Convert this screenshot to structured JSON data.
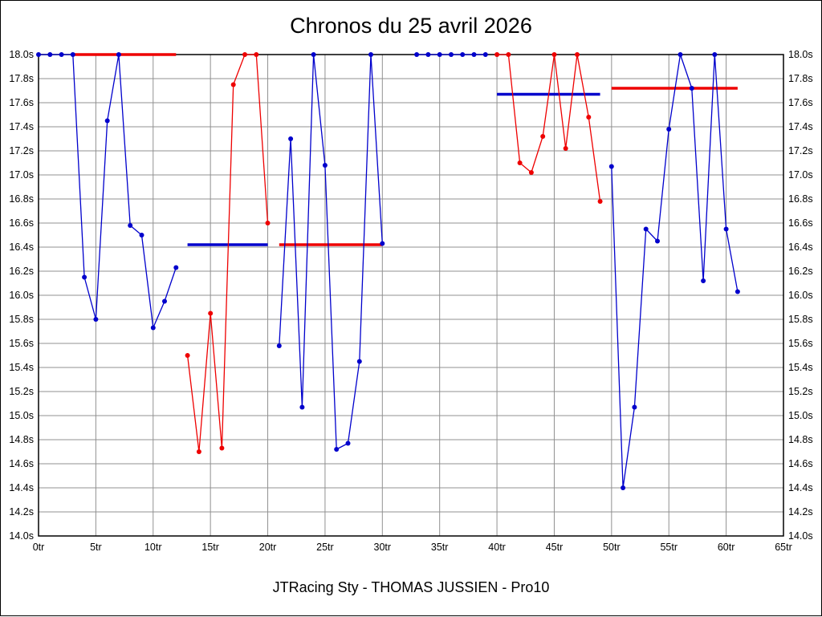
{
  "chart_data": {
    "type": "line",
    "title": "Chronos du 25 avril 2026",
    "footer_label": "JTRacing Sty - THOMAS JUSSIEN - Pro10",
    "x_unit": "tr",
    "y_unit": "s",
    "xlim": [
      0,
      65
    ],
    "ylim": [
      14.0,
      18.0
    ],
    "grid": true,
    "legend": "none",
    "colors": {
      "grid": "#909090",
      "frame": "#000000",
      "blue_series": "#0000cc",
      "red_series": "#ee0000"
    },
    "x_ticks": [
      "0tr",
      "5tr",
      "10tr",
      "15tr",
      "20tr",
      "25tr",
      "30tr",
      "35tr",
      "40tr",
      "45tr",
      "50tr",
      "55tr",
      "60tr",
      "65tr"
    ],
    "x_tick_values": [
      0,
      5,
      10,
      15,
      20,
      25,
      30,
      35,
      40,
      45,
      50,
      55,
      60,
      65
    ],
    "y_ticks": [
      "18.0s",
      "17.8s",
      "17.6s",
      "17.4s",
      "17.2s",
      "17.0s",
      "16.8s",
      "16.6s",
      "16.4s",
      "16.2s",
      "16.0s",
      "15.8s",
      "15.6s",
      "15.4s",
      "15.2s",
      "15.0s",
      "14.8s",
      "14.6s",
      "14.4s",
      "14.2s",
      "14.0s"
    ],
    "y_tick_values": [
      18.0,
      17.8,
      17.6,
      17.4,
      17.2,
      17.0,
      16.8,
      16.6,
      16.4,
      16.2,
      16.0,
      15.8,
      15.6,
      15.4,
      15.2,
      15.0,
      14.8,
      14.6,
      14.4,
      14.2,
      14.0
    ],
    "series": [
      {
        "name": "blue-lap-times-run-1",
        "color_key": "blue_series",
        "points": [
          [
            0,
            18.0
          ],
          [
            1,
            18.0
          ],
          [
            2,
            18.0
          ],
          [
            3,
            18.0
          ],
          [
            4,
            16.15
          ],
          [
            5,
            15.8
          ],
          [
            6,
            17.45
          ],
          [
            7,
            18.0
          ],
          [
            8,
            16.58
          ],
          [
            9,
            16.5
          ],
          [
            10,
            15.73
          ],
          [
            11,
            15.95
          ],
          [
            12,
            16.23
          ]
        ]
      },
      {
        "name": "blue-lap-times-run-2",
        "color_key": "blue_series",
        "points": [
          [
            21,
            15.58
          ],
          [
            22,
            17.3
          ],
          [
            23,
            15.07
          ],
          [
            24,
            18.0
          ],
          [
            25,
            17.08
          ],
          [
            26,
            14.72
          ],
          [
            27,
            14.77
          ],
          [
            28,
            15.45
          ],
          [
            29,
            18.0
          ],
          [
            30,
            16.43
          ]
        ]
      },
      {
        "name": "blue-lap-times-run-3",
        "color_key": "blue_series",
        "points": [
          [
            33,
            18.0
          ],
          [
            34,
            18.0
          ],
          [
            35,
            18.0
          ],
          [
            36,
            18.0
          ],
          [
            37,
            18.0
          ],
          [
            38,
            18.0
          ],
          [
            39,
            18.0
          ]
        ]
      },
      {
        "name": "blue-lap-times-run-4",
        "color_key": "blue_series",
        "points": [
          [
            50,
            17.07
          ],
          [
            51,
            14.4
          ],
          [
            52,
            15.07
          ],
          [
            53,
            16.55
          ],
          [
            54,
            16.45
          ],
          [
            55,
            17.38
          ],
          [
            56,
            18.0
          ],
          [
            57,
            17.72
          ],
          [
            58,
            16.12
          ],
          [
            59,
            18.0
          ],
          [
            60,
            16.55
          ],
          [
            61,
            16.03
          ]
        ]
      },
      {
        "name": "red-lap-times-run-1",
        "color_key": "red_series",
        "points": [
          [
            13,
            15.5
          ],
          [
            14,
            14.7
          ],
          [
            15,
            15.85
          ],
          [
            16,
            14.73
          ],
          [
            17,
            17.75
          ],
          [
            18,
            18.0
          ],
          [
            19,
            18.0
          ],
          [
            20,
            16.6
          ]
        ]
      },
      {
        "name": "red-lap-times-run-2",
        "color_key": "red_series",
        "points": [
          [
            40,
            18.0
          ],
          [
            41,
            18.0
          ],
          [
            42,
            17.1
          ],
          [
            43,
            17.02
          ],
          [
            44,
            17.32
          ],
          [
            45,
            18.0
          ],
          [
            46,
            17.22
          ],
          [
            47,
            18.0
          ],
          [
            48,
            17.48
          ],
          [
            49,
            16.78
          ]
        ]
      }
    ],
    "average_lines": [
      {
        "name": "red-average-line-1",
        "color_key": "red_series",
        "y": 18.0,
        "x_start": 3,
        "x_end": 12
      },
      {
        "name": "blue-average-line-1",
        "color_key": "blue_series",
        "y": 16.42,
        "x_start": 13,
        "x_end": 20
      },
      {
        "name": "red-average-line-2",
        "color_key": "red_series",
        "y": 16.42,
        "x_start": 21,
        "x_end": 30
      },
      {
        "name": "blue-average-line-2",
        "color_key": "blue_series",
        "y": 17.67,
        "x_start": 40,
        "x_end": 49
      },
      {
        "name": "red-average-line-3",
        "color_key": "red_series",
        "y": 17.72,
        "x_start": 50,
        "x_end": 61
      }
    ]
  }
}
